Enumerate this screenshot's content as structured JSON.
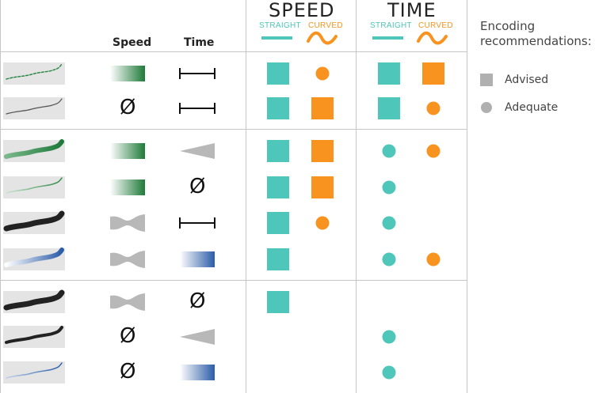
{
  "colors": {
    "teal": "#4ec6b9",
    "orange": "#f7931e",
    "grid": "#c6c6c6",
    "thumb_bg": "#e4e4e4",
    "speed_gradient": "#1e7a3a",
    "time_gradient": "#2b5ca8",
    "gray_shape": "#b8b8b8",
    "legend_gray": "#b0b0b0"
  },
  "header": {
    "speed_title": "SPEED",
    "time_title": "TIME",
    "straight": "STRAIGHT",
    "curved": "CURVED",
    "speed_col": "Speed",
    "time_col": "Time"
  },
  "legend": {
    "title_line1": "Encoding",
    "title_line2": "recommendations:",
    "advised": "Advised",
    "adequate": "Adequate"
  },
  "null_symbol": "Ø",
  "rows": [
    {
      "group": 1,
      "thumb": "thin-green",
      "speed": "gradient-green",
      "time": "interval",
      "speed_straight": "square",
      "speed_curved": "circle",
      "time_straight": "square",
      "time_curved": "square"
    },
    {
      "group": 1,
      "thumb": "thin-gray",
      "speed": "none",
      "time": "interval",
      "speed_straight": "square",
      "speed_curved": "square",
      "time_straight": "square",
      "time_curved": "circle"
    },
    {
      "group": 2,
      "thumb": "thick-green",
      "speed": "gradient-green",
      "time": "taper",
      "speed_straight": "square",
      "speed_curved": "square",
      "time_straight": "circle",
      "time_curved": "circle"
    },
    {
      "group": 2,
      "thumb": "thin-green-fade",
      "speed": "gradient-green",
      "time": "none",
      "speed_straight": "square",
      "speed_curved": "square",
      "time_straight": "circle",
      "time_curved": ""
    },
    {
      "group": 2,
      "thumb": "thick-black",
      "speed": "bowtie",
      "time": "interval",
      "speed_straight": "square",
      "speed_curved": "circle",
      "time_straight": "circle",
      "time_curved": ""
    },
    {
      "group": 2,
      "thumb": "thick-blue",
      "speed": "bowtie",
      "time": "gradient-blue",
      "speed_straight": "square",
      "speed_curved": "",
      "time_straight": "circle",
      "time_curved": "circle"
    },
    {
      "group": 3,
      "thumb": "thick-black-2",
      "speed": "bowtie",
      "time": "none",
      "speed_straight": "square",
      "speed_curved": "",
      "time_straight": "",
      "time_curved": ""
    },
    {
      "group": 3,
      "thumb": "medium-black",
      "speed": "none",
      "time": "taper",
      "speed_straight": "",
      "speed_curved": "",
      "time_straight": "circle",
      "time_curved": ""
    },
    {
      "group": 3,
      "thumb": "thin-blue",
      "speed": "none",
      "time": "gradient-blue",
      "speed_straight": "",
      "speed_curved": "",
      "time_straight": "circle",
      "time_curved": ""
    }
  ]
}
